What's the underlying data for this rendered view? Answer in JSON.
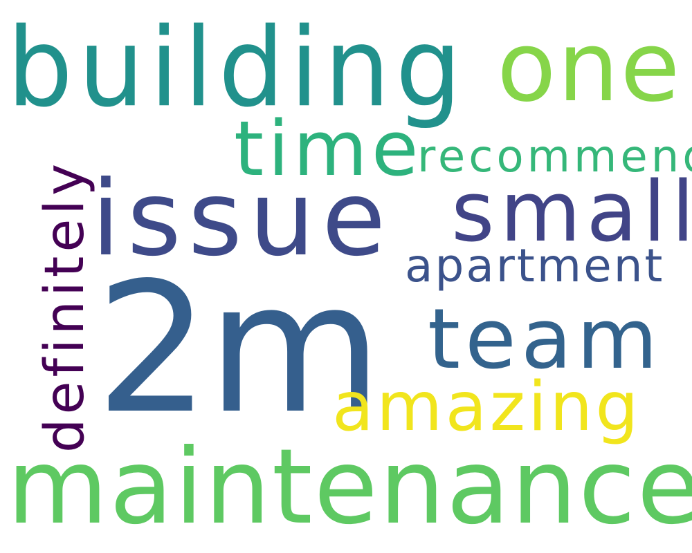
{
  "words": {
    "building": {
      "text": "building",
      "color": "#21918c"
    },
    "one": {
      "text": "one",
      "color": "#86d549"
    },
    "time": {
      "text": "time",
      "color": "#2db27d"
    },
    "recommend": {
      "text": "recommend",
      "color": "#35b779"
    },
    "issue": {
      "text": "issue",
      "color": "#3e4a89"
    },
    "small": {
      "text": "small",
      "color": "#414487"
    },
    "apartment": {
      "text": "apartment",
      "color": "#3b528b"
    },
    "twom": {
      "text": "2m",
      "color": "#355f8d"
    },
    "team": {
      "text": "team",
      "color": "#33638d"
    },
    "amazing": {
      "text": "amazing",
      "color": "#f1e51d"
    },
    "maintenance": {
      "text": "maintenance",
      "color": "#5ec962"
    },
    "definitely": {
      "text": "definitely",
      "color": "#440154"
    }
  },
  "background": "#ffffff"
}
